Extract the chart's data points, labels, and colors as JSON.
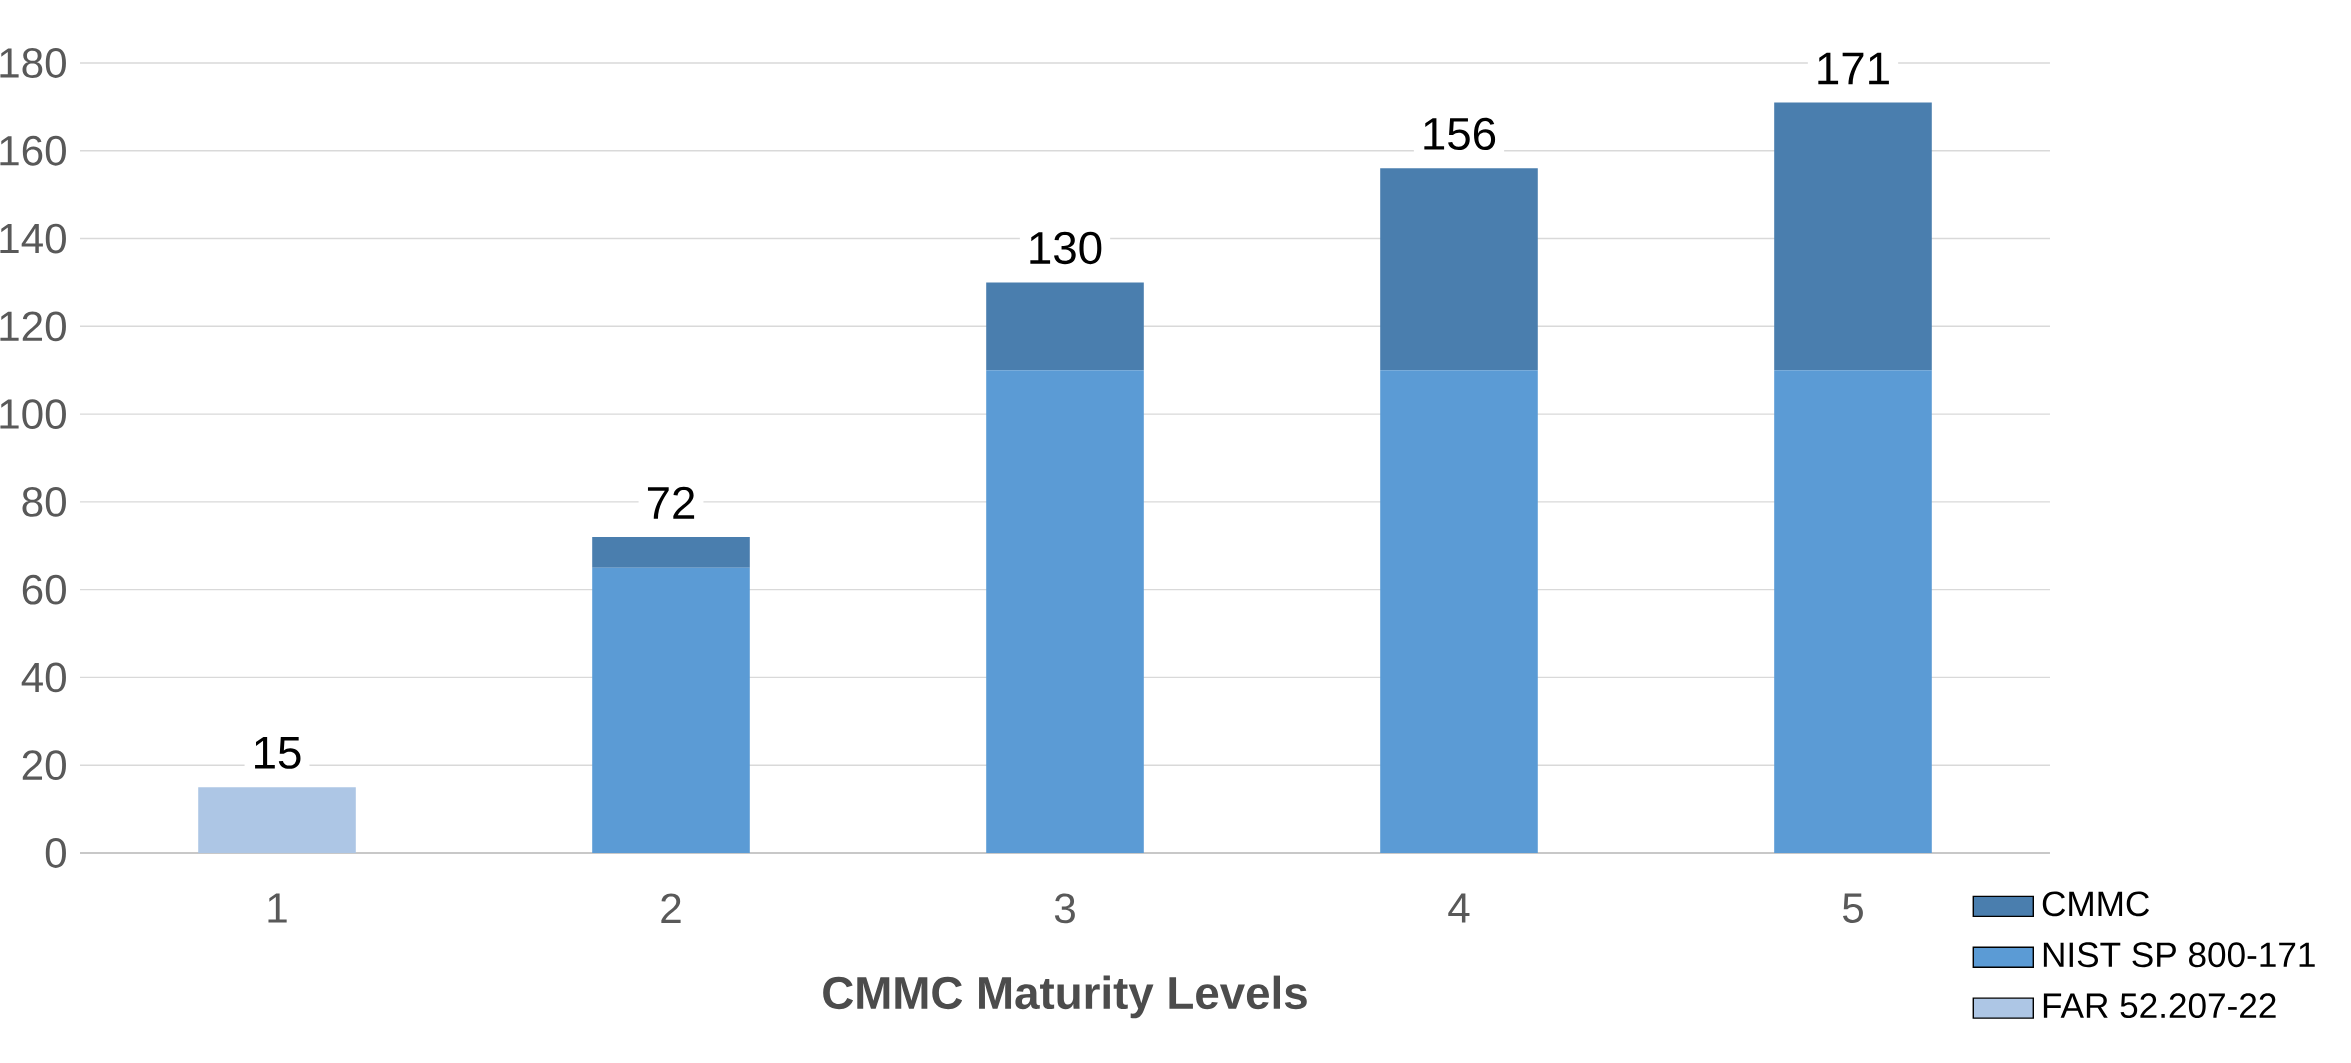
{
  "chart_data": {
    "type": "bar",
    "stacked": true,
    "xlabel": "CMMC Maturity Levels",
    "categories": [
      "1",
      "2",
      "3",
      "4",
      "5"
    ],
    "series": [
      {
        "name": "FAR 52.207-22",
        "color": "#adc6e5",
        "values": [
          15,
          null,
          null,
          null,
          null
        ]
      },
      {
        "name": "NIST SP 800-171",
        "color": "#5b9bd5",
        "values": [
          null,
          65,
          110,
          110,
          110
        ]
      },
      {
        "name": "CMMC",
        "color": "#4a7eae",
        "values": [
          null,
          7,
          20,
          46,
          61
        ]
      }
    ],
    "totals": [
      "15",
      "72",
      "130",
      "156",
      "171"
    ],
    "ylim": [
      0,
      180
    ],
    "yticks": [
      0,
      20,
      40,
      60,
      80,
      100,
      120,
      140,
      160,
      180
    ],
    "grid": "y",
    "legend": "bottom right"
  }
}
